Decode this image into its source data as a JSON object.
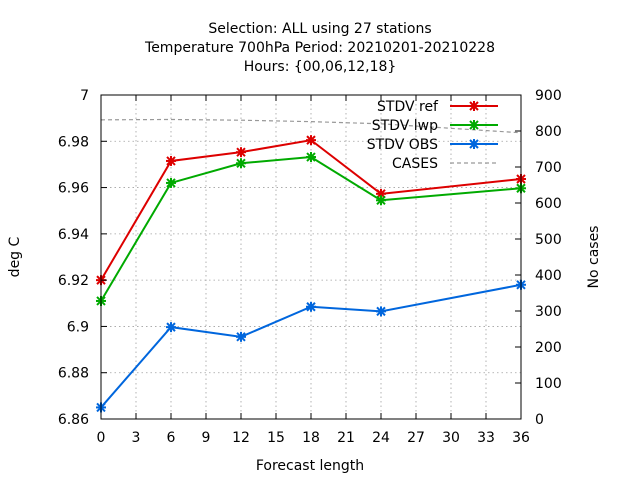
{
  "chart_data": {
    "type": "line",
    "title_lines": [
      "Selection: ALL using    27 stations",
      "Temperature 700hPa   Period: 20210201-20210228",
      "Hours: {00,06,12,18}"
    ],
    "xlabel": "Forecast length",
    "ylabel": "deg C",
    "y2label": "No cases",
    "xlim": [
      0,
      36
    ],
    "ylim": [
      6.86,
      7.0
    ],
    "y2lim": [
      0,
      900
    ],
    "x_ticks": [
      0,
      3,
      6,
      9,
      12,
      15,
      18,
      21,
      24,
      27,
      30,
      33,
      36
    ],
    "y_ticks": [
      "6.86",
      "6.88",
      "6.9",
      "6.92",
      "6.94",
      "6.96",
      "6.98",
      "7"
    ],
    "y2_ticks": [
      "0",
      "100",
      "200",
      "300",
      "400",
      "500",
      "600",
      "700",
      "800",
      "900"
    ],
    "grid": true,
    "legend_position": "top-right",
    "series": [
      {
        "name": "STDV ref",
        "color": "#dd0000",
        "axis": "y",
        "style": "line-marker",
        "x": [
          0,
          6,
          12,
          18,
          24,
          36
        ],
        "values": [
          6.92,
          6.9715,
          6.9753,
          6.9805,
          6.9573,
          6.9637
        ]
      },
      {
        "name": "STDV lwp",
        "color": "#00aa00",
        "axis": "y",
        "style": "line-marker",
        "x": [
          0,
          6,
          12,
          18,
          24,
          36
        ],
        "values": [
          6.911,
          6.962,
          6.9705,
          6.9732,
          6.9545,
          6.9597
        ]
      },
      {
        "name": "STDV OBS",
        "color": "#0066dd",
        "axis": "y",
        "style": "line-marker",
        "x": [
          0,
          6,
          12,
          18,
          24,
          36
        ],
        "values": [
          6.865,
          6.8997,
          6.8955,
          6.9085,
          6.9065,
          6.918
        ]
      },
      {
        "name": "CASES",
        "color": "#999999",
        "axis": "y2",
        "style": "dashed",
        "x": [
          0,
          6,
          12,
          18,
          24,
          36
        ],
        "values": [
          831,
          832,
          830,
          826,
          820,
          795
        ]
      }
    ]
  }
}
